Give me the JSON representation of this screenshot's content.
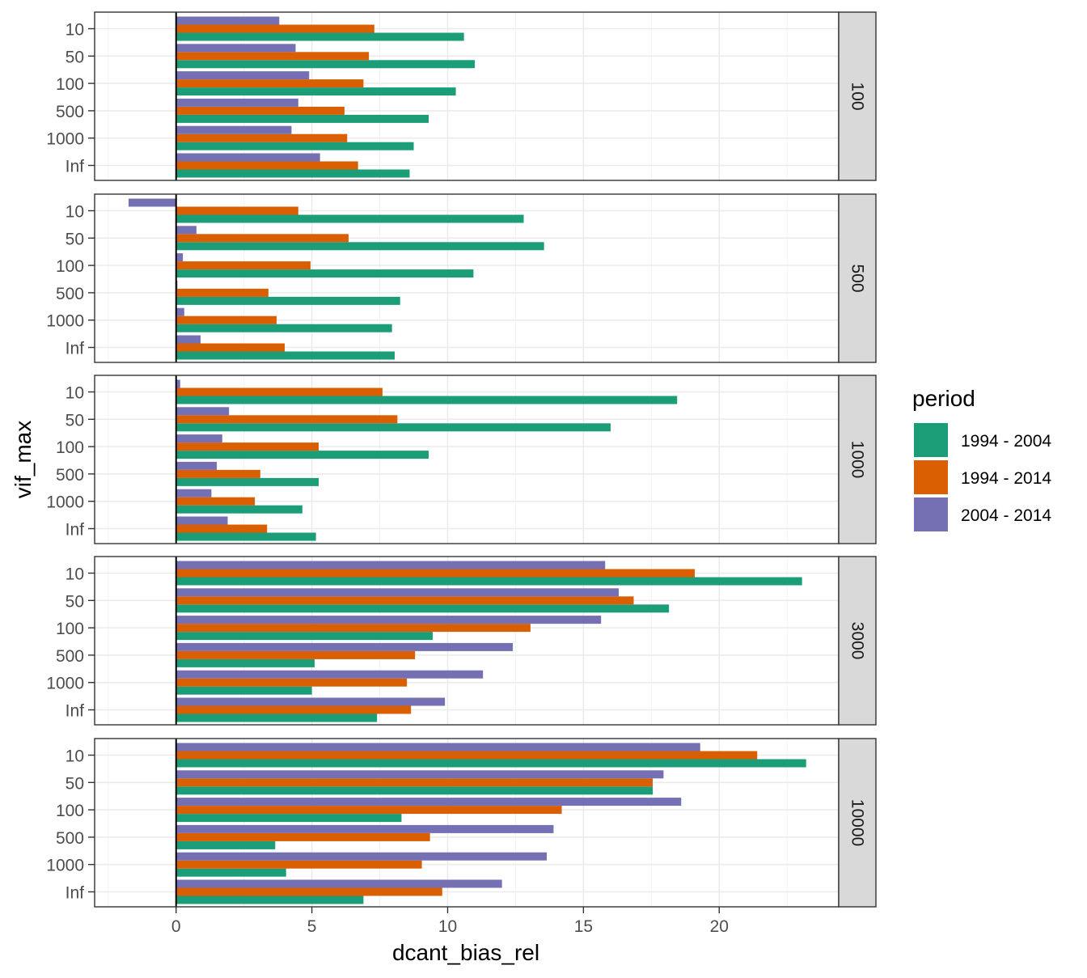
{
  "chart_data": {
    "type": "bar",
    "orientation": "horizontal",
    "faceted_by": "rows",
    "xlabel": "dcant_bias_rel",
    "ylabel": "vif_max",
    "xlim": [
      -3,
      24.4
    ],
    "x_ticks": [
      0,
      5,
      10,
      15,
      20
    ],
    "grid": true,
    "zero_line": true,
    "categories": [
      "10",
      "50",
      "100",
      "500",
      "1000",
      "Inf"
    ],
    "legend": {
      "title": "period",
      "position": "right",
      "entries": [
        "1994 - 2004",
        "1994 - 2014",
        "2004 - 2014"
      ]
    },
    "series_colors": [
      "#1B9E77",
      "#D95F02",
      "#7570B3"
    ],
    "panels": [
      {
        "strip": "100",
        "series": [
          {
            "name": "1994 - 2004",
            "values": [
              10.6,
              11.0,
              10.3,
              9.3,
              8.75,
              8.6
            ]
          },
          {
            "name": "1994 - 2014",
            "values": [
              7.3,
              7.1,
              6.9,
              6.2,
              6.3,
              6.7
            ]
          },
          {
            "name": "2004 - 2014",
            "values": [
              3.8,
              4.4,
              4.9,
              4.5,
              4.25,
              5.3
            ]
          }
        ]
      },
      {
        "strip": "500",
        "series": [
          {
            "name": "1994 - 2004",
            "values": [
              12.8,
              13.55,
              10.95,
              8.25,
              7.95,
              8.05
            ]
          },
          {
            "name": "1994 - 2014",
            "values": [
              4.5,
              6.35,
              4.95,
              3.4,
              3.7,
              4.0
            ]
          },
          {
            "name": "2004 - 2014",
            "values": [
              -1.75,
              0.75,
              0.25,
              0.05,
              0.3,
              0.9
            ]
          }
        ]
      },
      {
        "strip": "1000",
        "series": [
          {
            "name": "1994 - 2004",
            "values": [
              18.45,
              16.0,
              9.3,
              5.25,
              4.65,
              5.15
            ]
          },
          {
            "name": "1994 - 2014",
            "values": [
              7.6,
              8.15,
              5.25,
              3.1,
              2.9,
              3.35
            ]
          },
          {
            "name": "2004 - 2014",
            "values": [
              0.15,
              1.95,
              1.7,
              1.5,
              1.3,
              1.9
            ]
          }
        ]
      },
      {
        "strip": "3000",
        "series": [
          {
            "name": "1994 - 2004",
            "values": [
              23.05,
              18.15,
              9.45,
              5.1,
              5.0,
              7.4
            ]
          },
          {
            "name": "1994 - 2014",
            "values": [
              19.1,
              16.85,
              13.05,
              8.8,
              8.5,
              8.65
            ]
          },
          {
            "name": "2004 - 2014",
            "values": [
              15.8,
              16.3,
              15.65,
              12.4,
              11.3,
              9.9
            ]
          }
        ]
      },
      {
        "strip": "10000",
        "series": [
          {
            "name": "1994 - 2004",
            "values": [
              23.2,
              17.55,
              8.3,
              3.65,
              4.05,
              6.9
            ]
          },
          {
            "name": "1994 - 2014",
            "values": [
              21.4,
              17.55,
              14.2,
              9.35,
              9.05,
              9.8
            ]
          },
          {
            "name": "2004 - 2014",
            "values": [
              19.3,
              17.95,
              18.6,
              13.9,
              13.65,
              12.0
            ]
          }
        ]
      }
    ]
  }
}
